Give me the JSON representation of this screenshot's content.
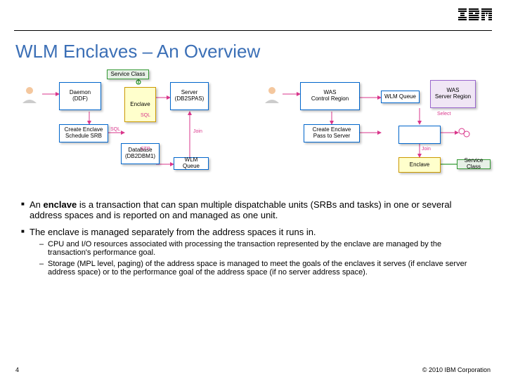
{
  "header": {
    "logo_text": "IBM"
  },
  "title": "WLM Enclaves – An Overview",
  "diagram": {
    "left": {
      "daemon": {
        "label": "Daemon\n(DDF)",
        "bg": "#ffffff",
        "border": "#0066cc"
      },
      "create_enclave": {
        "label": "Create Enclave\nSchedule SRB",
        "bg": "#ffffff",
        "border": "#0066cc"
      },
      "service_class": {
        "label": "Service Class",
        "bg": "#e6f0e6",
        "border": "#339933"
      },
      "enclave": {
        "label": "Enclave",
        "bg": "#ffffcc",
        "border": "#cc9900"
      },
      "server": {
        "label": "Server\n(DB2SPAS)",
        "bg": "#ffffff",
        "border": "#0066cc"
      },
      "database": {
        "label": "Database\n(DB2DBM1)",
        "bg": "#ffffff",
        "border": "#0066cc"
      },
      "wlm": {
        "label": "WLM Queue",
        "bg": "#ffffff",
        "border": "#0066cc"
      },
      "edge_sql1": "SQL",
      "edge_sql2": "SQL",
      "edge_stp": "STP",
      "edge_join": "Join"
    },
    "right": {
      "was_control": {
        "label": "WAS\nControl Region",
        "bg": "#ffffff",
        "border": "#0066cc"
      },
      "create_enclave": {
        "label": "Create Enclave\nPass to Server",
        "bg": "#ffffff",
        "border": "#0066cc"
      },
      "wlm_queue": {
        "label": "WLM Queue",
        "bg": "#ffffff",
        "border": "#0066cc"
      },
      "was_server": {
        "label": "WAS\nServer Region",
        "bg": "#f0e6f5",
        "border": "#9966cc"
      },
      "enclave": {
        "label": "Enclave",
        "bg": "#ffffcc",
        "border": "#cc9900"
      },
      "service_class": {
        "label": "Service Class",
        "bg": "#e6f0e6",
        "border": "#339933"
      },
      "edge_select": "Select",
      "edge_join": "Join"
    },
    "line_color": "#d9368b"
  },
  "bullets": {
    "b1_pre": "An ",
    "b1_bold": "enclave",
    "b1_post": " is a transaction that can span multiple dispatchable units (SRBs and tasks) in one or several address spaces and is reported on and managed as one unit.",
    "b2": "The enclave is managed separately from the address spaces it runs in.",
    "sub1": "CPU and I/O resources associated with processing the transaction represented by the enclave are managed by the transaction's performance goal.",
    "sub2": "Storage (MPL level, paging) of the address space is managed to meet the goals of the enclaves it serves (if enclave server address space) or to the performance goal of the address space (if no server address space)."
  },
  "footer": {
    "page": "4",
    "copyright": "© 2010 IBM Corporation"
  }
}
